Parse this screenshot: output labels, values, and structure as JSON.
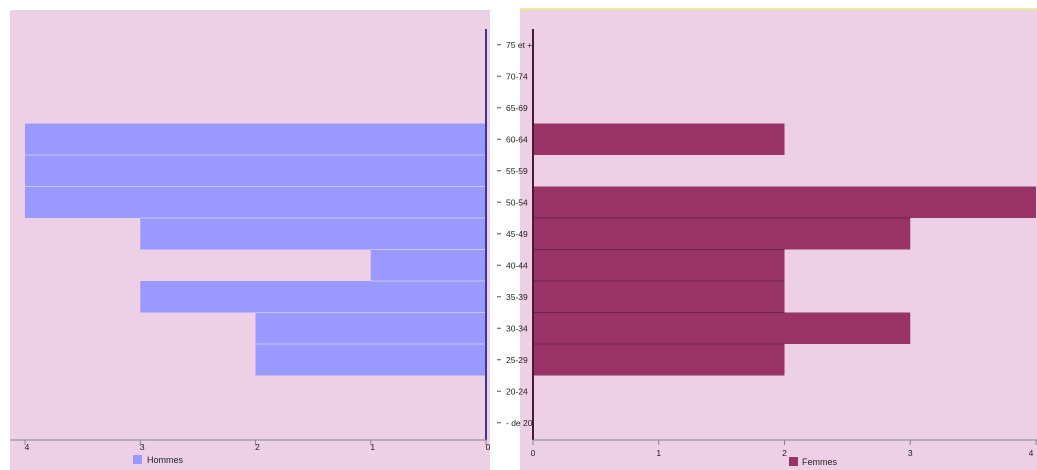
{
  "chart_data": {
    "type": "population-pyramid",
    "age_groups": [
      "75 et +",
      "70-74",
      "65-69",
      "60-64",
      "55-59",
      "50-54",
      "45-49",
      "40-44",
      "35-39",
      "30-34",
      "25-29",
      "20-24",
      "- de 20"
    ],
    "series": [
      {
        "name": "Hommes",
        "side": "left",
        "color": "#9999ff",
        "values": [
          0,
          0,
          0,
          4,
          4,
          4,
          3,
          1,
          3,
          2,
          2,
          0,
          0
        ]
      },
      {
        "name": "Femmes",
        "side": "right",
        "color": "#993366",
        "values": [
          0,
          0,
          0,
          2,
          0,
          4,
          3,
          2,
          2,
          3,
          2,
          0,
          0
        ]
      }
    ],
    "left_axis_ticks": [
      "4",
      "3",
      "2",
      "1",
      "0"
    ],
    "right_axis_ticks": [
      "0",
      "1",
      "2",
      "3",
      "4"
    ],
    "xlim": [
      0,
      4
    ],
    "background": "#edcfe6",
    "grid": false,
    "legend_position": "bottom"
  }
}
